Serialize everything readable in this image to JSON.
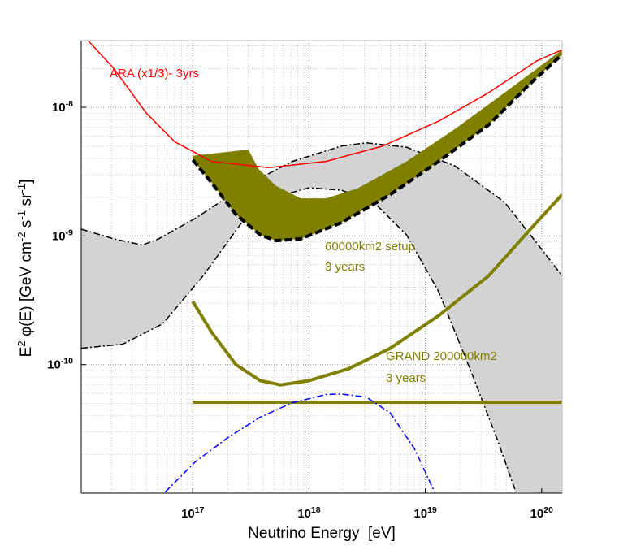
{
  "chart_data": {
    "type": "line",
    "xlog": true,
    "ylog": true,
    "grid": true,
    "xlabel": "Neutrino Energy  [eV]",
    "ylabel": "E^2 φ(E) [GeV cm^-2 s^-1 sr^-1]",
    "xlim": [
      1.1e+16,
      1.5e+20
    ],
    "ylim": [
      1e-11,
      3.3e-08
    ],
    "xticks": [
      {
        "value": 1e+17,
        "label": "10^17"
      },
      {
        "value": 1e+18,
        "label": "10^18"
      },
      {
        "value": 1e+19,
        "label": "10^19"
      },
      {
        "value": 1e+20,
        "label": "10^20"
      }
    ],
    "yticks": [
      {
        "value": 1e-10,
        "label": "10^-10"
      },
      {
        "value": 1e-09,
        "label": "10^-9"
      },
      {
        "value": 1e-08,
        "label": "10^-8"
      }
    ],
    "bands": [
      {
        "color": "#d3d3d3",
        "edge_color": "#000000",
        "upper_style": "dashdot",
        "lower_style": "dashdot",
        "upper": {
          "x": [
            1.1e+16,
            2.1e+16,
            3.7e+16,
            5.1e+16,
            1.05e+17,
            2.8e+17,
            7.2e+17,
            1.9e+18,
            3.1e+18,
            6.9e+18,
            1.8e+19,
            4.8e+19,
            9.1e+19,
            1.5e+20
          ],
          "y": [
            1.13e-09,
            9.5e-10,
            8.5e-10,
            9.5e-10,
            1.37e-09,
            2.45e-09,
            3.8e-09,
            5e-09,
            5.3e-09,
            4.9e-09,
            3.5e-09,
            1.83e-09,
            8.8e-10,
            4.9e-10
          ]
        },
        "lower": {
          "x": [
            1.1e+16,
            2.5e+16,
            5.5e+16,
            1.23e+17,
            2.8e+17,
            6.2e+17,
            1e+18,
            1.9e+18,
            3.6e+18,
            6.9e+18,
            1.3e+19,
            2.5e+19,
            4.1e+19,
            6e+19
          ],
          "y": [
            1.34e-10,
            1.44e-10,
            2.07e-10,
            4.9e-10,
            1.37e-09,
            2.1e-09,
            2.37e-09,
            2.27e-09,
            1.83e-09,
            1.02e-09,
            3.7e-10,
            8.6e-11,
            2.7e-11,
            1.02e-11
          ]
        }
      },
      {
        "color": "#808000",
        "edge_color": "#000000",
        "upper_style": "none",
        "lower_style": "dashed",
        "upper": {
          "x": [
            1e+17,
            3e+17,
            3.7e+17,
            5.2e+17,
            8.5e+17,
            1.4e+18,
            2.6e+18,
            6.9e+18,
            1.8e+19,
            4.8e+19,
            1.5e+20
          ],
          "y": [
            4.2e-09,
            4.7e-09,
            3.3e-09,
            2.45e-09,
            1.96e-09,
            1.96e-09,
            2.34e-09,
            3.8e-09,
            6.8e-09,
            1.3e-08,
            2.8e-08
          ]
        },
        "lower": {
          "x": [
            1e+17,
            1.45e+17,
            2.35e+17,
            3.8e+17,
            5.2e+17,
            8.5e+17,
            1.9e+18,
            5e+18,
            1.3e+19,
            3.5e+19,
            7.8e+19,
            1.5e+20
          ],
          "y": [
            3.9e-09,
            2.6e-09,
            1.47e-09,
            1.02e-09,
            9.2e-10,
            9.5e-10,
            1.27e-09,
            2.1e-09,
            3.8e-09,
            7.3e-09,
            1.5e-08,
            2.57e-08
          ]
        }
      }
    ],
    "series": [
      {
        "color": "#ff0000",
        "style": "thin",
        "x": [
          1.26e+16,
          2.1e+16,
          4e+16,
          7e+16,
          1.45e+17,
          4.5e+17,
          1.4e+18,
          4.3e+18,
          1.3e+19,
          3.5e+19,
          9.1e+19,
          1.5e+20
        ],
        "y": [
          3.3e-08,
          2e-08,
          9e-09,
          5.4e-09,
          3.8e-09,
          3.4e-09,
          3.8e-09,
          5e-09,
          7.8e-09,
          1.3e-08,
          2.3e-08,
          2.8e-08
        ]
      },
      {
        "color": "#808000",
        "style": "thick",
        "x": [
          1e+17,
          1.45e+17,
          2.35e+17,
          3.8e+17,
          5.7e+17,
          1e+18,
          2.2e+18,
          5e+18,
          1.3e+19,
          3.5e+19,
          7.8e+19,
          1.5e+20
        ],
        "y": [
          3.1e-10,
          1.79e-10,
          1e-10,
          7.5e-11,
          6.95e-11,
          7.5e-11,
          9.3e-11,
          1.34e-10,
          2.4e-10,
          4.9e-10,
          1.1e-09,
          2.1e-09
        ]
      },
      {
        "color": "#808000",
        "style": "thick",
        "x": [
          1e+17,
          1.5e+20
        ],
        "y": [
          5.1e-11,
          5.1e-11
        ]
      },
      {
        "color": "#0000ff",
        "style": "dashdot",
        "x": [
          5.8e+16,
          1.05e+17,
          2e+17,
          3.8e+17,
          7.2e+17,
          1.4e+18,
          1.9e+18,
          3.1e+18,
          5e+18,
          8.1e+18,
          1.2e+19
        ],
        "y": [
          1.02e-11,
          1.75e-11,
          2.7e-11,
          3.9e-11,
          5.05e-11,
          5.85e-11,
          5.9e-11,
          5.6e-11,
          4.2e-11,
          2.2e-11,
          1.02e-11
        ]
      }
    ],
    "annotations": [
      {
        "text": "ARA (x1/3)- 3yrs",
        "color": "#ff0000"
      },
      {
        "text": "60000km2 setup",
        "color": "#808000"
      },
      {
        "text": "3 years",
        "color": "#808000"
      },
      {
        "text": "GRAND 200000km2",
        "color": "#808000"
      },
      {
        "text": "3 years",
        "color": "#808000"
      }
    ]
  }
}
